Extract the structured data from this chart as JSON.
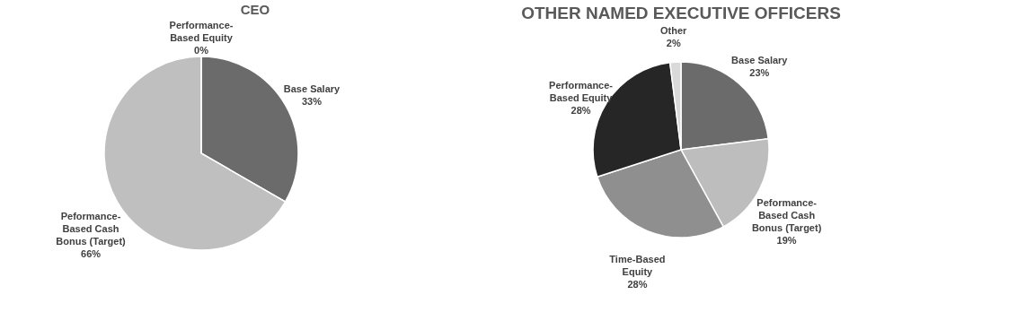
{
  "chart_data": [
    {
      "type": "pie",
      "title": "CEO",
      "categories": [
        "Base Salary",
        "Peformance-Based Cash Bonus (Target)",
        "Performance-Based Equity"
      ],
      "values": [
        33,
        66,
        0
      ],
      "value_labels": [
        "33%",
        "66%",
        "0%"
      ],
      "colors": [
        "#6b6b6b",
        "#bfbfbf",
        "#d9d9d9"
      ],
      "legend": false
    },
    {
      "type": "pie",
      "title": "OTHER NAMED EXECUTIVE OFFICERS",
      "categories": [
        "Base Salary",
        "Peformance-Based Cash Bonus (Target)",
        "Time-Based Equity",
        "Performance-Based Equity",
        "Other"
      ],
      "values": [
        23,
        19,
        28,
        28,
        2
      ],
      "value_labels": [
        "23%",
        "19%",
        "28%",
        "28%",
        "2%"
      ],
      "colors": [
        "#6b6b6b",
        "#bdbdbd",
        "#8f8f8f",
        "#262626",
        "#d9d9d9"
      ],
      "legend": false
    }
  ]
}
